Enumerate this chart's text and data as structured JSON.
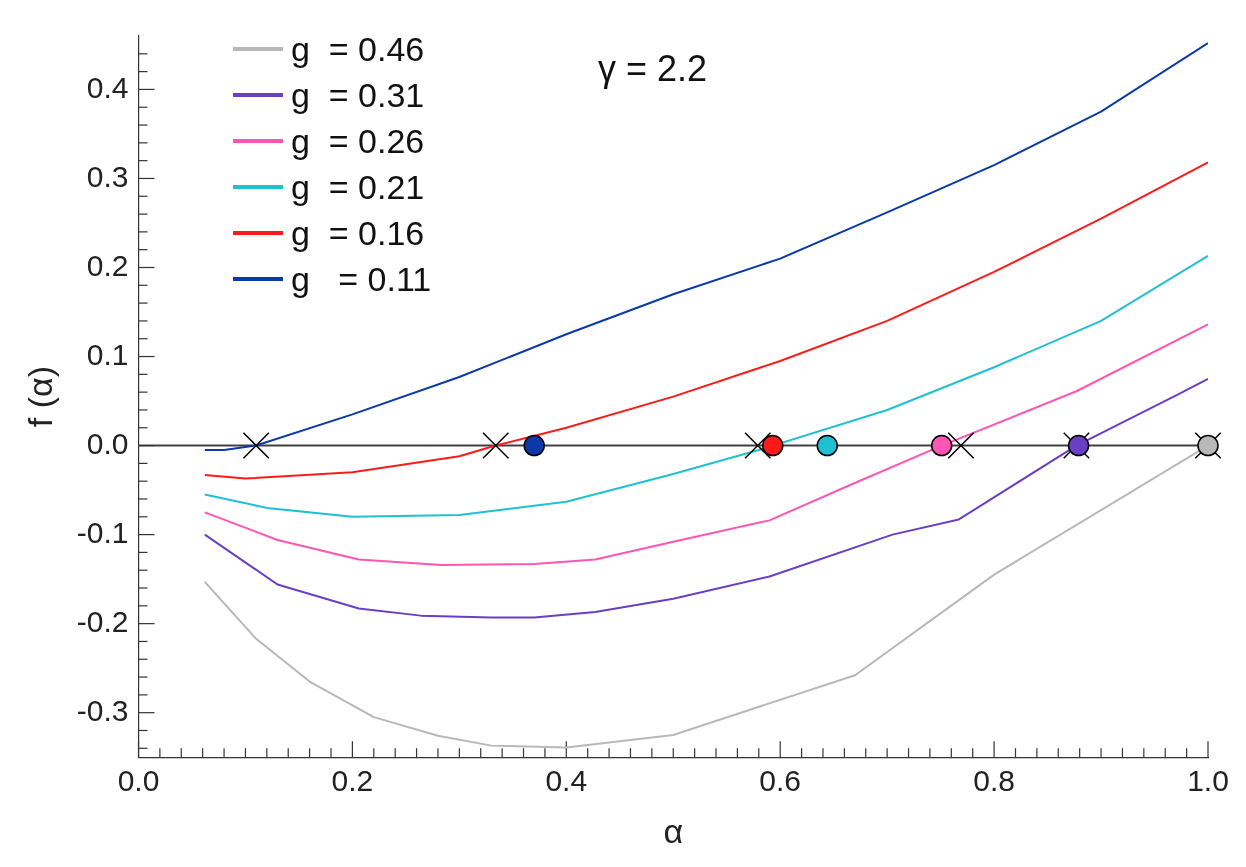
{
  "chart_data": {
    "type": "line",
    "xlabel": "α",
    "ylabel": "f (α)",
    "annotations": [
      "γ = 2.2"
    ],
    "legend": "top left",
    "grid": false,
    "xlim": [
      0,
      1.0
    ],
    "ylim": [
      -0.35,
      0.46
    ],
    "xticks": [
      {
        "value": 0,
        "label": "0.0"
      },
      {
        "value": 0.02,
        "label": null
      },
      {
        "value": 0.04,
        "label": null
      },
      {
        "value": 0.06,
        "label": null
      },
      {
        "value": 0.08,
        "label": null
      },
      {
        "value": 0.1,
        "label": null
      },
      {
        "value": 0.12,
        "label": null
      },
      {
        "value": 0.14,
        "label": null
      },
      {
        "value": 0.16,
        "label": null
      },
      {
        "value": 0.18,
        "label": null
      },
      {
        "value": 0.2,
        "label": "0.2"
      },
      {
        "value": 0.22,
        "label": null
      },
      {
        "value": 0.24,
        "label": null
      },
      {
        "value": 0.26,
        "label": null
      },
      {
        "value": 0.28,
        "label": null
      },
      {
        "value": 0.3,
        "label": null
      },
      {
        "value": 0.32,
        "label": null
      },
      {
        "value": 0.34,
        "label": null
      },
      {
        "value": 0.36,
        "label": null
      },
      {
        "value": 0.38,
        "label": null
      },
      {
        "value": 0.4,
        "label": "0.4"
      },
      {
        "value": 0.42,
        "label": null
      },
      {
        "value": 0.44,
        "label": null
      },
      {
        "value": 0.46,
        "label": null
      },
      {
        "value": 0.48,
        "label": null
      },
      {
        "value": 0.5,
        "label": null
      },
      {
        "value": 0.52,
        "label": null
      },
      {
        "value": 0.54,
        "label": null
      },
      {
        "value": 0.56,
        "label": null
      },
      {
        "value": 0.58,
        "label": null
      },
      {
        "value": 0.6,
        "label": "0.6"
      },
      {
        "value": 0.62,
        "label": null
      },
      {
        "value": 0.64,
        "label": null
      },
      {
        "value": 0.66,
        "label": null
      },
      {
        "value": 0.68,
        "label": null
      },
      {
        "value": 0.7,
        "label": null
      },
      {
        "value": 0.72,
        "label": null
      },
      {
        "value": 0.74,
        "label": null
      },
      {
        "value": 0.76,
        "label": null
      },
      {
        "value": 0.78,
        "label": null
      },
      {
        "value": 0.8,
        "label": "0.8"
      },
      {
        "value": 0.82,
        "label": null
      },
      {
        "value": 0.84,
        "label": null
      },
      {
        "value": 0.86,
        "label": null
      },
      {
        "value": 0.88,
        "label": null
      },
      {
        "value": 0.9,
        "label": null
      },
      {
        "value": 0.92,
        "label": null
      },
      {
        "value": 0.94,
        "label": null
      },
      {
        "value": 0.96,
        "label": null
      },
      {
        "value": 0.98,
        "label": null
      },
      {
        "value": 1.0,
        "label": "1.0"
      }
    ],
    "yticks": [
      {
        "value": -0.34,
        "label": null
      },
      {
        "value": -0.32,
        "label": null
      },
      {
        "value": -0.3,
        "label": "-0.3"
      },
      {
        "value": -0.28,
        "label": null
      },
      {
        "value": -0.26,
        "label": null
      },
      {
        "value": -0.24,
        "label": null
      },
      {
        "value": -0.22,
        "label": null
      },
      {
        "value": -0.2,
        "label": "-0.2"
      },
      {
        "value": -0.18,
        "label": null
      },
      {
        "value": -0.16,
        "label": null
      },
      {
        "value": -0.14,
        "label": null
      },
      {
        "value": -0.12,
        "label": null
      },
      {
        "value": -0.1,
        "label": "-0.1"
      },
      {
        "value": -0.08,
        "label": null
      },
      {
        "value": -0.06,
        "label": null
      },
      {
        "value": -0.04,
        "label": null
      },
      {
        "value": -0.02,
        "label": null
      },
      {
        "value": 0,
        "label": "0.0"
      },
      {
        "value": 0.02,
        "label": null
      },
      {
        "value": 0.04,
        "label": null
      },
      {
        "value": 0.06,
        "label": null
      },
      {
        "value": 0.08,
        "label": null
      },
      {
        "value": 0.1,
        "label": "0.1"
      },
      {
        "value": 0.12,
        "label": null
      },
      {
        "value": 0.14,
        "label": null
      },
      {
        "value": 0.16,
        "label": null
      },
      {
        "value": 0.18,
        "label": null
      },
      {
        "value": 0.2,
        "label": "0.2"
      },
      {
        "value": 0.22,
        "label": null
      },
      {
        "value": 0.24,
        "label": null
      },
      {
        "value": 0.26,
        "label": null
      },
      {
        "value": 0.28,
        "label": null
      },
      {
        "value": 0.3,
        "label": "0.3"
      },
      {
        "value": 0.32,
        "label": null
      },
      {
        "value": 0.34,
        "label": null
      },
      {
        "value": 0.36,
        "label": null
      },
      {
        "value": 0.38,
        "label": null
      },
      {
        "value": 0.4,
        "label": "0.4"
      },
      {
        "value": 0.42,
        "label": null
      },
      {
        "value": 0.44,
        "label": null
      }
    ],
    "ref_lines": [
      {
        "axis": "y",
        "value": 0,
        "color": "#404040"
      }
    ],
    "series": [
      {
        "name": "g  = 0.46",
        "color": "#b8b8b8",
        "marker": "none",
        "x": [
          0.062,
          0.11,
          0.16,
          0.22,
          0.28,
          0.33,
          0.4,
          0.5,
          0.67,
          0.8,
          1.0
        ],
        "values": [
          -0.153,
          -0.217,
          -0.265,
          -0.305,
          -0.326,
          -0.337,
          -0.339,
          -0.325,
          -0.258,
          -0.145,
          0
        ]
      },
      {
        "name": "g  = 0.31",
        "color": "#6a3fc4",
        "marker": "none",
        "x": [
          0.062,
          0.13,
          0.206,
          0.264,
          0.33,
          0.37,
          0.427,
          0.5,
          0.59,
          0.705,
          0.767,
          0.877,
          0.973,
          1.0
        ],
        "values": [
          -0.1,
          -0.156,
          -0.183,
          -0.191,
          -0.193,
          -0.193,
          -0.187,
          -0.172,
          -0.147,
          -0.1,
          -0.083,
          0,
          0.058,
          0.075
        ]
      },
      {
        "name": "g  = 0.26",
        "color": "#ff55b4",
        "marker": "none",
        "x": [
          0.062,
          0.13,
          0.206,
          0.283,
          0.37,
          0.427,
          0.5,
          0.59,
          0.666,
          0.751,
          0.877,
          1.0
        ],
        "values": [
          -0.075,
          -0.106,
          -0.128,
          -0.134,
          -0.133,
          -0.128,
          -0.108,
          -0.084,
          -0.044,
          0,
          0.061,
          0.136
        ]
      },
      {
        "name": "g  = 0.21",
        "color": "#1fc0d0",
        "marker": "none",
        "x": [
          0.062,
          0.12,
          0.2,
          0.3,
          0.4,
          0.5,
          0.58,
          0.7,
          0.8,
          0.9,
          1.0
        ],
        "values": [
          -0.055,
          -0.07,
          -0.08,
          -0.078,
          -0.063,
          -0.032,
          -0.005,
          0.04,
          0.088,
          0.14,
          0.213
        ]
      },
      {
        "name": "g  = 0.16",
        "color": "#ff1a1a",
        "marker": "none",
        "x": [
          0.062,
          0.1,
          0.2,
          0.3,
          0.334,
          0.4,
          0.5,
          0.6,
          0.7,
          0.8,
          0.9,
          1.0
        ],
        "values": [
          -0.033,
          -0.037,
          -0.03,
          -0.012,
          0,
          0.02,
          0.055,
          0.095,
          0.14,
          0.195,
          0.255,
          0.318
        ]
      },
      {
        "name": "g   = 0.11",
        "color": "#0b3aa8",
        "marker": "none",
        "x": [
          0.062,
          0.08,
          0.11,
          0.2,
          0.3,
          0.4,
          0.5,
          0.6,
          0.7,
          0.8,
          0.9,
          1.0
        ],
        "values": [
          -0.005,
          -0.005,
          0,
          0.035,
          0.077,
          0.125,
          0.17,
          0.21,
          0.262,
          0.315,
          0.375,
          0.452
        ]
      },
      {
        "type": "scatter",
        "marker": "cross",
        "color": "#000000",
        "x": [
          0.11,
          0.334,
          0.579,
          0.769,
          0.877,
          1.0
        ],
        "values": [
          0,
          0,
          0,
          0,
          0,
          0
        ]
      },
      {
        "type": "scatter",
        "marker": "circle",
        "colors": [
          "#0b3aa8",
          "#ff1a1a",
          "#1fc0d0",
          "#ff55b4",
          "#6a3fc4",
          "#b8b8b8"
        ],
        "x": [
          0.37,
          0.593,
          0.644,
          0.751,
          0.879,
          1.0
        ],
        "values": [
          0,
          0,
          0,
          0,
          0,
          0
        ]
      }
    ]
  }
}
